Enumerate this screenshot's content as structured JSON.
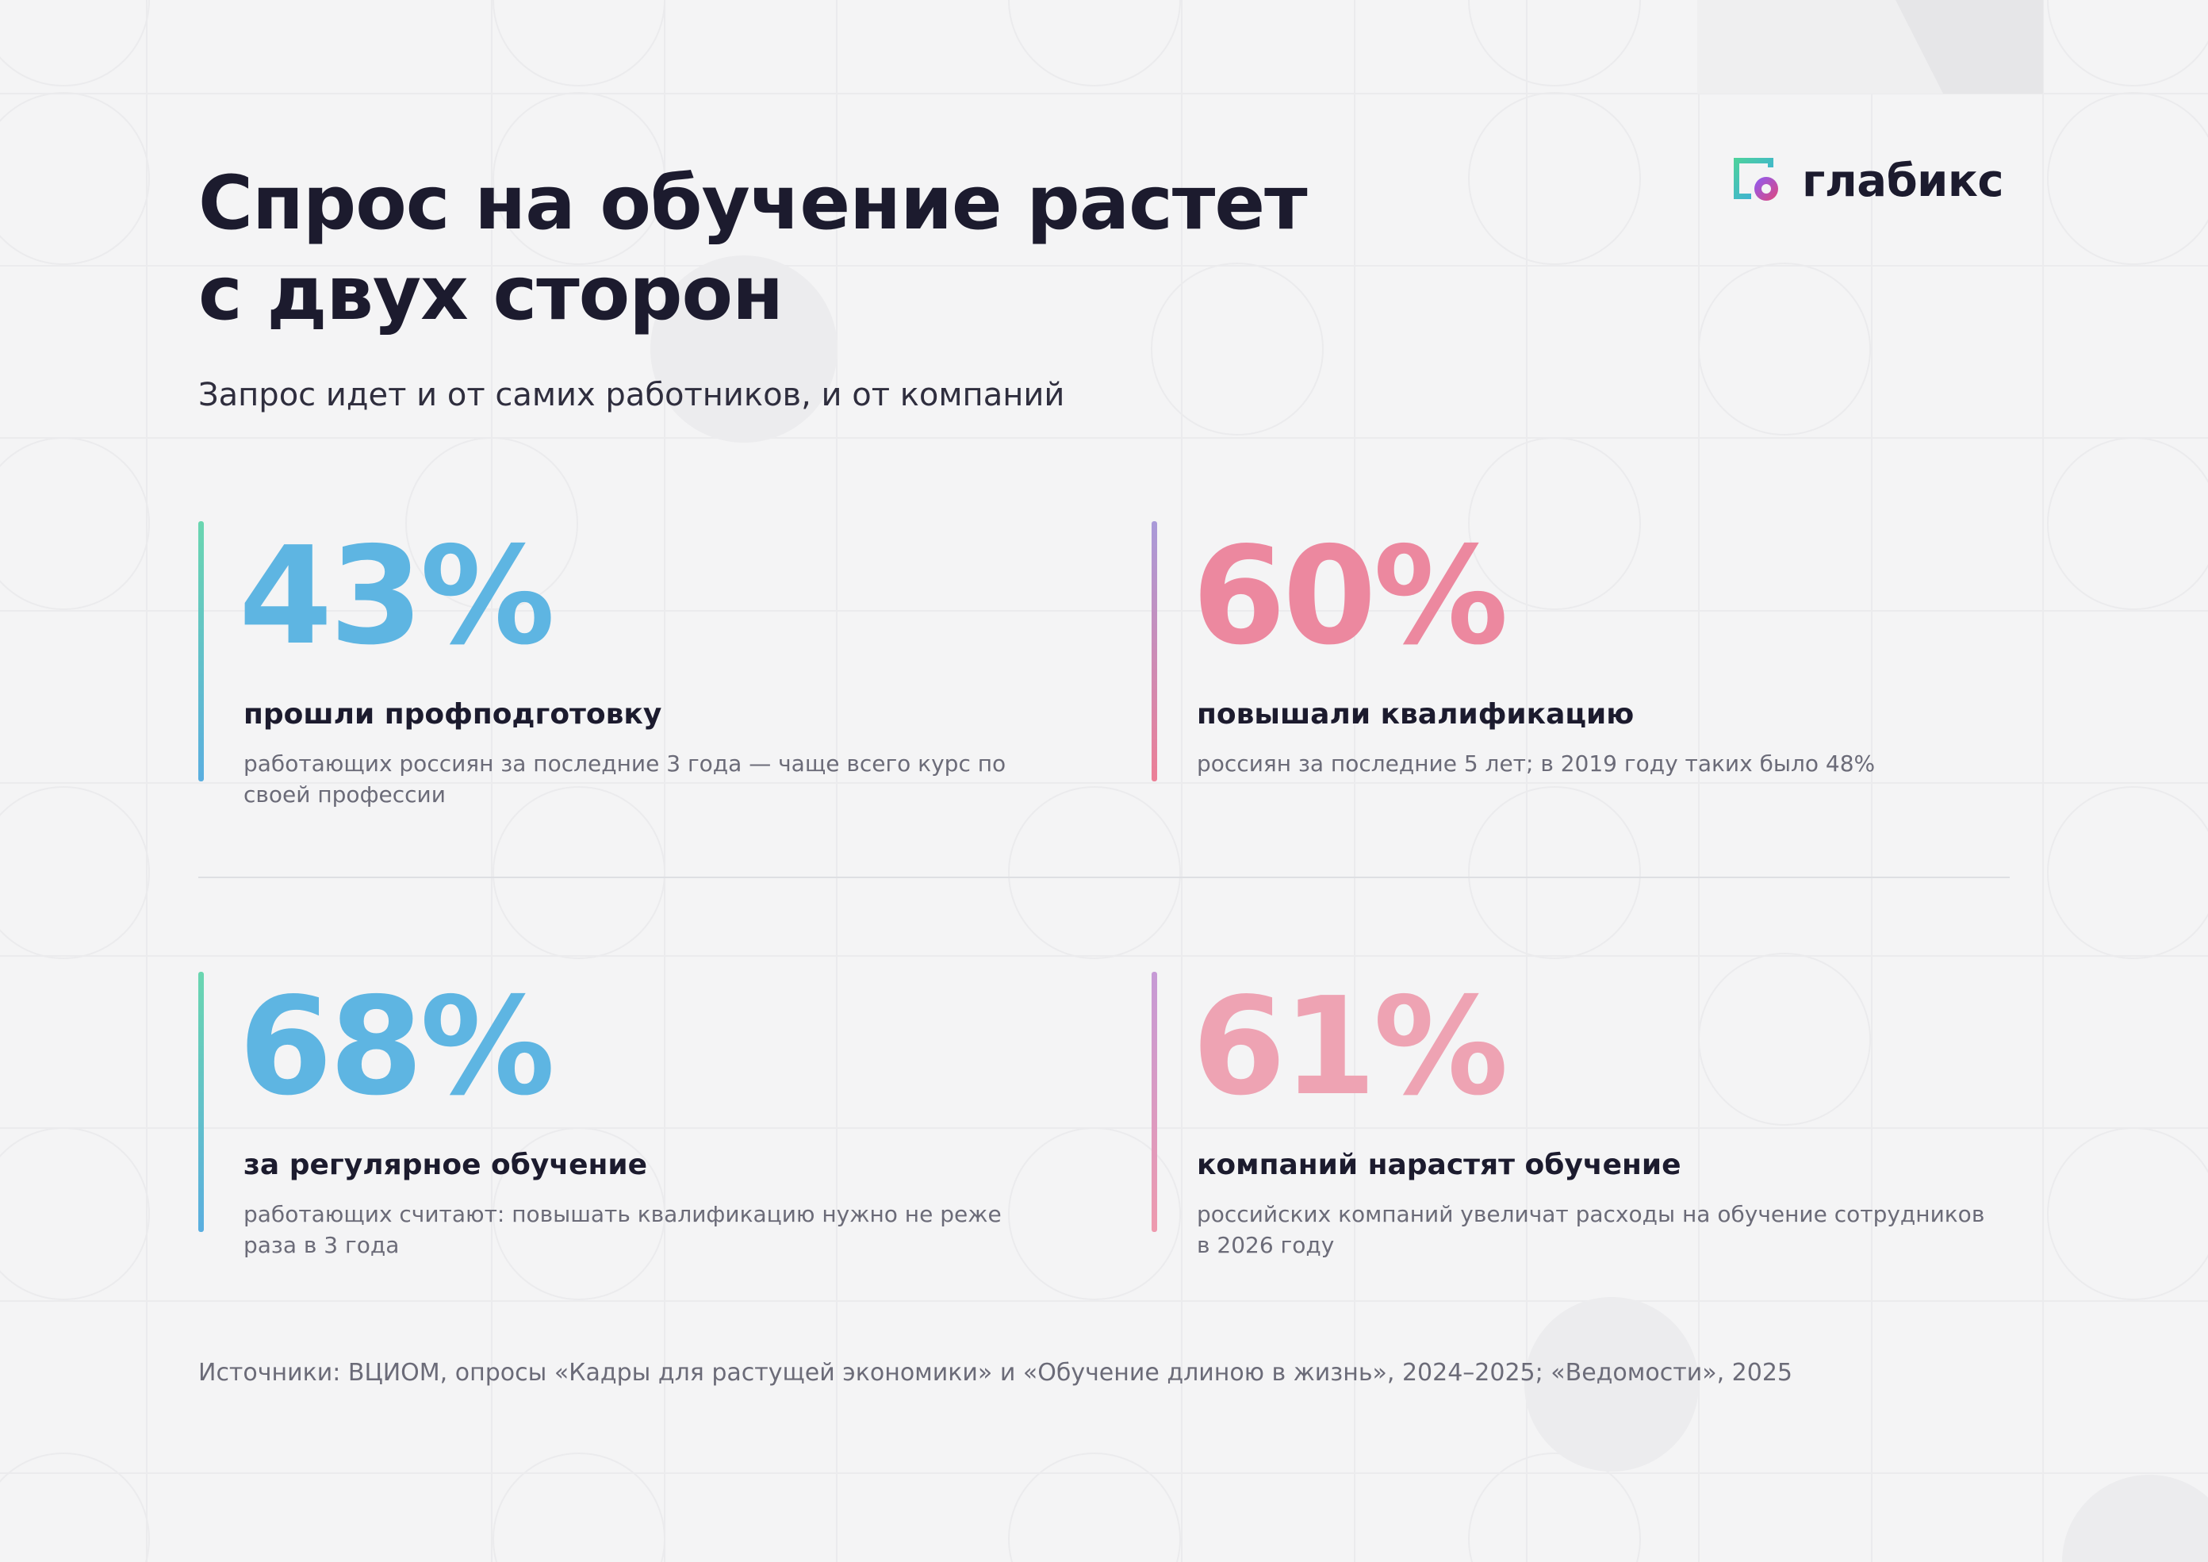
{
  "header": {
    "title_line1": "Спрос на обучение растет",
    "title_line2": "с двух сторон",
    "subtitle": "Запрос идет и от самих работников, и от компаний"
  },
  "logo": {
    "text": "глабикс",
    "icon": "glabix-logo-icon"
  },
  "stats": [
    {
      "value": "43%",
      "label": "прошли профподготовку",
      "description": "работающих россиян за последние 3 года — чаще всего курс по своей профессии",
      "color": "#5eb5e2",
      "bar_gradient": [
        "#6ad6b0",
        "#5aaee0"
      ]
    },
    {
      "value": "60%",
      "label": "повышали квалификацию",
      "description": "россиян за последние 5 лет; в 2019 году таких было 48%",
      "color": "#ec889f",
      "bar_gradient": [
        "#a99ad9",
        "#ec7f96"
      ]
    },
    {
      "value": "68%",
      "label": "за регулярное обучение",
      "description": "работающих считают: повышать квалификацию нужно не реже раза в 3 года",
      "color": "#5eb5e2",
      "bar_gradient": [
        "#6ad6b0",
        "#5aaee0"
      ]
    },
    {
      "value": "61%",
      "label": "компаний нарастят обучение",
      "description": "российских компаний увеличат расходы на обучение сотрудников в 2026 году",
      "color": "#eea3b3",
      "bar_gradient": [
        "#c69ad6",
        "#ee9aae"
      ]
    }
  ],
  "footer": {
    "sources": "Источники: ВЦИОМ, опросы «Кадры для растущей экономики» и «Обучение длиною в жизнь», 2024–2025; «Ведомости», 2025"
  }
}
